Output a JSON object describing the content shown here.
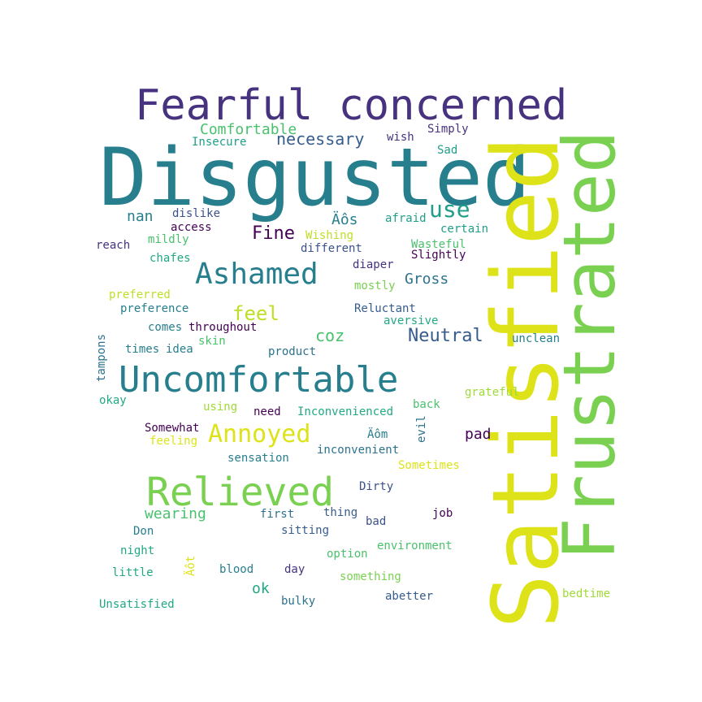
{
  "words": [
    {
      "text": "Fearful concerned",
      "color": "#46327e",
      "rotated": false
    },
    {
      "text": "Disgusted",
      "color": "#277f8e",
      "rotated": false
    },
    {
      "text": "Satisfied",
      "color": "#dde318",
      "rotated": true
    },
    {
      "text": "Frustrated",
      "color": "#7ad151",
      "rotated": true
    },
    {
      "text": "Comfortable",
      "color": "#4ac16d",
      "rotated": false
    },
    {
      "text": "Insecure",
      "color": "#1f9e89",
      "rotated": false
    },
    {
      "text": "necessary",
      "color": "#365c8d",
      "rotated": false
    },
    {
      "text": "wish",
      "color": "#46327e",
      "rotated": false
    },
    {
      "text": "Simply",
      "color": "#46327e",
      "rotated": false
    },
    {
      "text": "Sad",
      "color": "#1f9e89",
      "rotated": false
    },
    {
      "text": "use",
      "color": "#1f9e89",
      "rotated": false
    },
    {
      "text": "nan",
      "color": "#277f8e",
      "rotated": false
    },
    {
      "text": "dislike",
      "color": "#3b528b",
      "rotated": false
    },
    {
      "text": "Äôs",
      "color": "#277f8e",
      "rotated": false
    },
    {
      "text": "afraid",
      "color": "#1f9e89",
      "rotated": false
    },
    {
      "text": "Fine",
      "color": "#440154",
      "rotated": false
    },
    {
      "text": "access",
      "color": "#440154",
      "rotated": false
    },
    {
      "text": "certain",
      "color": "#1f9e89",
      "rotated": false
    },
    {
      "text": "Wishing",
      "color": "#bddf26",
      "rotated": false
    },
    {
      "text": "mildly",
      "color": "#4ac16d",
      "rotated": false
    },
    {
      "text": "reach",
      "color": "#46327e",
      "rotated": false
    },
    {
      "text": "Wasteful",
      "color": "#4ac16d",
      "rotated": false
    },
    {
      "text": "different",
      "color": "#3b528b",
      "rotated": false
    },
    {
      "text": "Slightly",
      "color": "#440154",
      "rotated": false
    },
    {
      "text": "chafes",
      "color": "#22a884",
      "rotated": false
    },
    {
      "text": "Ashamed",
      "color": "#277f8e",
      "rotated": false
    },
    {
      "text": "diaper",
      "color": "#46327e",
      "rotated": false
    },
    {
      "text": "Gross",
      "color": "#2c728e",
      "rotated": false
    },
    {
      "text": "mostly",
      "color": "#7ad151",
      "rotated": false
    },
    {
      "text": "preferred",
      "color": "#bddf26",
      "rotated": false
    },
    {
      "text": "feel",
      "color": "#bddf26",
      "rotated": false
    },
    {
      "text": "preference",
      "color": "#277f8e",
      "rotated": false
    },
    {
      "text": "Reluctant",
      "color": "#365c8d",
      "rotated": false
    },
    {
      "text": "aversive",
      "color": "#22a884",
      "rotated": false
    },
    {
      "text": "comes",
      "color": "#277f8e",
      "rotated": false
    },
    {
      "text": "throughout",
      "color": "#440154",
      "rotated": false
    },
    {
      "text": "coz",
      "color": "#4ac16d",
      "rotated": false
    },
    {
      "text": "Neutral",
      "color": "#365c8d",
      "rotated": false
    },
    {
      "text": "unclean",
      "color": "#277f8e",
      "rotated": false
    },
    {
      "text": "skin",
      "color": "#4ac16d",
      "rotated": false
    },
    {
      "text": "times",
      "color": "#277f8e",
      "rotated": false
    },
    {
      "text": "idea",
      "color": "#277f8e",
      "rotated": false
    },
    {
      "text": "product",
      "color": "#2c728e",
      "rotated": false
    },
    {
      "text": "Uncomfortable",
      "color": "#277f8e",
      "rotated": false
    },
    {
      "text": "tampons",
      "color": "#2c728e",
      "rotated": true
    },
    {
      "text": "okay",
      "color": "#22a884",
      "rotated": false
    },
    {
      "text": "grateful",
      "color": "#a0da39",
      "rotated": false
    },
    {
      "text": "using",
      "color": "#a0da39",
      "rotated": false
    },
    {
      "text": "need",
      "color": "#440154",
      "rotated": false
    },
    {
      "text": "Inconvenienced",
      "color": "#22a884",
      "rotated": false
    },
    {
      "text": "back",
      "color": "#4ac16d",
      "rotated": false
    },
    {
      "text": "evil",
      "color": "#2c728e",
      "rotated": true
    },
    {
      "text": "Somewhat",
      "color": "#440154",
      "rotated": false
    },
    {
      "text": "Annoyed",
      "color": "#dde318",
      "rotated": false
    },
    {
      "text": "Äôm",
      "color": "#277f8e",
      "rotated": false
    },
    {
      "text": "pad",
      "color": "#440154",
      "rotated": false
    },
    {
      "text": "feeling",
      "color": "#dde318",
      "rotated": false
    },
    {
      "text": "inconvenient",
      "color": "#2c728e",
      "rotated": false
    },
    {
      "text": "sensation",
      "color": "#277f8e",
      "rotated": false
    },
    {
      "text": "Sometimes",
      "color": "#dde318",
      "rotated": false
    },
    {
      "text": "Relieved",
      "color": "#7ad151",
      "rotated": false
    },
    {
      "text": "Dirty",
      "color": "#3b528b",
      "rotated": false
    },
    {
      "text": "wearing",
      "color": "#4ac16d",
      "rotated": false
    },
    {
      "text": "first",
      "color": "#2c728e",
      "rotated": false
    },
    {
      "text": "thing",
      "color": "#365c8d",
      "rotated": false
    },
    {
      "text": "job",
      "color": "#440154",
      "rotated": false
    },
    {
      "text": "bad",
      "color": "#3b528b",
      "rotated": false
    },
    {
      "text": "Don",
      "color": "#277f8e",
      "rotated": false
    },
    {
      "text": "sitting",
      "color": "#365c8d",
      "rotated": false
    },
    {
      "text": "environment",
      "color": "#4ac16d",
      "rotated": false
    },
    {
      "text": "night",
      "color": "#22a884",
      "rotated": false
    },
    {
      "text": "option",
      "color": "#4ac16d",
      "rotated": false
    },
    {
      "text": "Äôt",
      "color": "#dde318",
      "rotated": true
    },
    {
      "text": "ok",
      "color": "#22a884",
      "rotated": false
    },
    {
      "text": "blood",
      "color": "#277f8e",
      "rotated": false
    },
    {
      "text": "day",
      "color": "#46327e",
      "rotated": false
    },
    {
      "text": "little",
      "color": "#22a884",
      "rotated": false
    },
    {
      "text": "something",
      "color": "#7ad151",
      "rotated": false
    },
    {
      "text": "bedtime",
      "color": "#a0da39",
      "rotated": false
    },
    {
      "text": "abetter",
      "color": "#365c8d",
      "rotated": false
    },
    {
      "text": "Unsatisfied",
      "color": "#22a884",
      "rotated": false
    },
    {
      "text": "bulky",
      "color": "#2c728e",
      "rotated": false
    }
  ]
}
